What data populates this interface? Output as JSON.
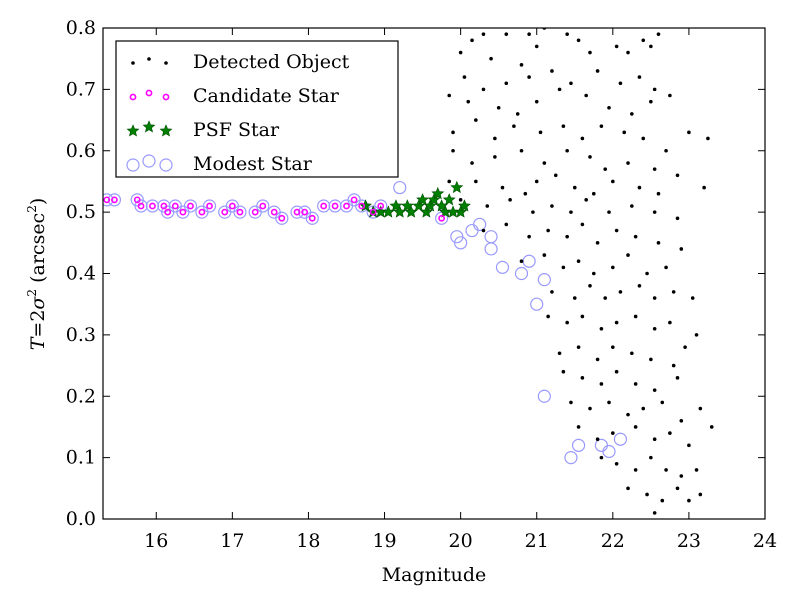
{
  "chart_data": {
    "type": "scatter",
    "title": "",
    "xlabel": "Magnitude",
    "ylabel_parts": {
      "var": "T",
      "eq": "=2",
      "sigma": "σ",
      "sup": "2",
      "unit_open": " (arcsec",
      "unit_sup": "2",
      "unit_close": ")"
    },
    "xlim": [
      15.3,
      24
    ],
    "ylim": [
      0.0,
      0.8
    ],
    "xticks": [
      16,
      17,
      18,
      19,
      20,
      21,
      22,
      23,
      24
    ],
    "xtick_labels": [
      "16",
      "17",
      "18",
      "19",
      "20",
      "21",
      "22",
      "23",
      "24"
    ],
    "yticks": [
      0.0,
      0.1,
      0.2,
      0.3,
      0.4,
      0.5,
      0.6,
      0.7,
      0.8
    ],
    "ytick_labels": [
      "0.0",
      "0.1",
      "0.2",
      "0.3",
      "0.4",
      "0.5",
      "0.6",
      "0.7",
      "0.8"
    ],
    "grid": false,
    "legend_position": "top-left",
    "series": [
      {
        "name": "Detected Object",
        "marker": "dot",
        "color": "#000000",
        "points": [
          [
            20.15,
            0.78
          ],
          [
            20.3,
            0.79
          ],
          [
            20.6,
            0.79
          ],
          [
            20.9,
            0.79
          ],
          [
            21.1,
            0.8
          ],
          [
            21.4,
            0.79
          ],
          [
            21.55,
            0.78
          ],
          [
            22.05,
            0.77
          ],
          [
            22.4,
            0.78
          ],
          [
            22.6,
            0.79
          ],
          [
            20.0,
            0.76
          ],
          [
            20.4,
            0.75
          ],
          [
            20.8,
            0.74
          ],
          [
            21.0,
            0.77
          ],
          [
            21.7,
            0.76
          ],
          [
            22.2,
            0.76
          ],
          [
            22.5,
            0.77
          ],
          [
            20.05,
            0.72
          ],
          [
            20.3,
            0.7
          ],
          [
            20.6,
            0.71
          ],
          [
            20.9,
            0.72
          ],
          [
            21.2,
            0.73
          ],
          [
            21.45,
            0.71
          ],
          [
            21.8,
            0.73
          ],
          [
            22.1,
            0.71
          ],
          [
            22.35,
            0.72
          ],
          [
            22.55,
            0.7
          ],
          [
            22.75,
            0.69
          ],
          [
            19.85,
            0.69
          ],
          [
            20.1,
            0.68
          ],
          [
            20.5,
            0.67
          ],
          [
            20.75,
            0.66
          ],
          [
            21.0,
            0.68
          ],
          [
            21.3,
            0.7
          ],
          [
            21.65,
            0.69
          ],
          [
            21.95,
            0.67
          ],
          [
            22.25,
            0.66
          ],
          [
            22.5,
            0.68
          ],
          [
            19.9,
            0.63
          ],
          [
            20.2,
            0.65
          ],
          [
            20.45,
            0.62
          ],
          [
            20.7,
            0.64
          ],
          [
            21.05,
            0.63
          ],
          [
            21.35,
            0.64
          ],
          [
            21.6,
            0.62
          ],
          [
            21.85,
            0.64
          ],
          [
            22.15,
            0.63
          ],
          [
            22.4,
            0.62
          ],
          [
            22.7,
            0.6
          ],
          [
            23.0,
            0.63
          ],
          [
            23.25,
            0.62
          ],
          [
            19.9,
            0.6
          ],
          [
            20.15,
            0.58
          ],
          [
            20.45,
            0.59
          ],
          [
            20.8,
            0.6
          ],
          [
            21.1,
            0.58
          ],
          [
            21.4,
            0.6
          ],
          [
            21.7,
            0.59
          ],
          [
            21.9,
            0.57
          ],
          [
            22.2,
            0.58
          ],
          [
            22.55,
            0.57
          ],
          [
            22.85,
            0.56
          ],
          [
            19.85,
            0.55
          ],
          [
            20.2,
            0.55
          ],
          [
            20.55,
            0.54
          ],
          [
            20.85,
            0.53
          ],
          [
            21.0,
            0.55
          ],
          [
            21.25,
            0.56
          ],
          [
            21.5,
            0.54
          ],
          [
            21.75,
            0.53
          ],
          [
            22.0,
            0.55
          ],
          [
            22.35,
            0.54
          ],
          [
            22.6,
            0.53
          ],
          [
            23.2,
            0.54
          ],
          [
            20.0,
            0.52
          ],
          [
            20.35,
            0.51
          ],
          [
            20.65,
            0.52
          ],
          [
            20.95,
            0.5
          ],
          [
            21.2,
            0.51
          ],
          [
            21.45,
            0.5
          ],
          [
            21.65,
            0.52
          ],
          [
            21.95,
            0.5
          ],
          [
            22.25,
            0.51
          ],
          [
            22.55,
            0.5
          ],
          [
            22.85,
            0.49
          ],
          [
            20.3,
            0.47
          ],
          [
            20.6,
            0.48
          ],
          [
            20.9,
            0.46
          ],
          [
            21.15,
            0.47
          ],
          [
            21.4,
            0.46
          ],
          [
            21.6,
            0.48
          ],
          [
            21.8,
            0.45
          ],
          [
            22.05,
            0.47
          ],
          [
            22.3,
            0.46
          ],
          [
            22.6,
            0.45
          ],
          [
            22.9,
            0.44
          ],
          [
            20.8,
            0.42
          ],
          [
            21.1,
            0.43
          ],
          [
            21.35,
            0.41
          ],
          [
            21.55,
            0.42
          ],
          [
            21.75,
            0.4
          ],
          [
            22.0,
            0.41
          ],
          [
            22.2,
            0.43
          ],
          [
            22.45,
            0.4
          ],
          [
            22.7,
            0.41
          ],
          [
            21.2,
            0.37
          ],
          [
            21.5,
            0.36
          ],
          [
            21.7,
            0.38
          ],
          [
            21.9,
            0.36
          ],
          [
            22.1,
            0.37
          ],
          [
            22.35,
            0.38
          ],
          [
            22.55,
            0.36
          ],
          [
            22.8,
            0.37
          ],
          [
            23.05,
            0.36
          ],
          [
            21.15,
            0.33
          ],
          [
            21.4,
            0.32
          ],
          [
            21.6,
            0.33
          ],
          [
            21.85,
            0.31
          ],
          [
            22.05,
            0.32
          ],
          [
            22.3,
            0.33
          ],
          [
            22.55,
            0.31
          ],
          [
            22.75,
            0.32
          ],
          [
            23.1,
            0.3
          ],
          [
            21.3,
            0.27
          ],
          [
            21.55,
            0.28
          ],
          [
            21.8,
            0.26
          ],
          [
            22.0,
            0.28
          ],
          [
            22.25,
            0.27
          ],
          [
            22.5,
            0.26
          ],
          [
            22.8,
            0.25
          ],
          [
            22.95,
            0.28
          ],
          [
            21.35,
            0.24
          ],
          [
            21.6,
            0.23
          ],
          [
            21.85,
            0.22
          ],
          [
            22.05,
            0.24
          ],
          [
            22.3,
            0.22
          ],
          [
            22.55,
            0.21
          ],
          [
            22.85,
            0.23
          ],
          [
            21.45,
            0.19
          ],
          [
            21.7,
            0.18
          ],
          [
            21.95,
            0.19
          ],
          [
            22.2,
            0.17
          ],
          [
            22.4,
            0.18
          ],
          [
            22.65,
            0.19
          ],
          [
            22.9,
            0.16
          ],
          [
            23.15,
            0.18
          ],
          [
            21.55,
            0.15
          ],
          [
            21.8,
            0.13
          ],
          [
            22.0,
            0.14
          ],
          [
            22.3,
            0.15
          ],
          [
            22.55,
            0.13
          ],
          [
            22.75,
            0.14
          ],
          [
            23.0,
            0.12
          ],
          [
            23.3,
            0.15
          ],
          [
            21.85,
            0.1
          ],
          [
            22.05,
            0.09
          ],
          [
            22.3,
            0.08
          ],
          [
            22.5,
            0.1
          ],
          [
            22.7,
            0.08
          ],
          [
            22.9,
            0.07
          ],
          [
            23.1,
            0.08
          ],
          [
            22.2,
            0.05
          ],
          [
            22.45,
            0.04
          ],
          [
            22.65,
            0.03
          ],
          [
            22.85,
            0.05
          ],
          [
            23.0,
            0.03
          ],
          [
            23.15,
            0.04
          ],
          [
            22.55,
            0.01
          ]
        ]
      },
      {
        "name": "Candidate Star",
        "marker": "small-ring",
        "color": "#ff00ff",
        "points": [
          [
            15.35,
            0.52
          ],
          [
            15.45,
            0.52
          ],
          [
            15.75,
            0.52
          ],
          [
            15.8,
            0.51
          ],
          [
            15.95,
            0.51
          ],
          [
            16.1,
            0.51
          ],
          [
            16.15,
            0.5
          ],
          [
            16.25,
            0.51
          ],
          [
            16.35,
            0.5
          ],
          [
            16.45,
            0.51
          ],
          [
            16.6,
            0.5
          ],
          [
            16.7,
            0.51
          ],
          [
            16.9,
            0.5
          ],
          [
            17.0,
            0.51
          ],
          [
            17.1,
            0.5
          ],
          [
            17.3,
            0.5
          ],
          [
            17.4,
            0.51
          ],
          [
            17.55,
            0.5
          ],
          [
            17.65,
            0.49
          ],
          [
            17.85,
            0.5
          ],
          [
            17.95,
            0.5
          ],
          [
            18.05,
            0.49
          ],
          [
            18.2,
            0.51
          ],
          [
            18.35,
            0.51
          ],
          [
            18.5,
            0.51
          ],
          [
            18.6,
            0.52
          ],
          [
            18.7,
            0.51
          ],
          [
            18.85,
            0.5
          ],
          [
            18.95,
            0.51
          ],
          [
            19.75,
            0.49
          ]
        ]
      },
      {
        "name": "PSF Star",
        "marker": "star",
        "color": "#008000",
        "points": [
          [
            18.75,
            0.51
          ],
          [
            18.85,
            0.5
          ],
          [
            18.95,
            0.5
          ],
          [
            19.05,
            0.5
          ],
          [
            19.15,
            0.51
          ],
          [
            19.2,
            0.5
          ],
          [
            19.3,
            0.51
          ],
          [
            19.35,
            0.5
          ],
          [
            19.45,
            0.51
          ],
          [
            19.5,
            0.52
          ],
          [
            19.55,
            0.5
          ],
          [
            19.6,
            0.51
          ],
          [
            19.65,
            0.52
          ],
          [
            19.7,
            0.53
          ],
          [
            19.75,
            0.51
          ],
          [
            19.8,
            0.5
          ],
          [
            19.85,
            0.52
          ],
          [
            19.95,
            0.54
          ],
          [
            20.0,
            0.5
          ],
          [
            20.05,
            0.51
          ],
          [
            19.9,
            0.5
          ]
        ]
      },
      {
        "name": "Modest Star",
        "marker": "ring",
        "color": "#9999ff",
        "points": [
          [
            15.35,
            0.52
          ],
          [
            15.45,
            0.52
          ],
          [
            15.75,
            0.52
          ],
          [
            15.8,
            0.51
          ],
          [
            15.95,
            0.51
          ],
          [
            16.1,
            0.51
          ],
          [
            16.15,
            0.5
          ],
          [
            16.25,
            0.51
          ],
          [
            16.35,
            0.5
          ],
          [
            16.45,
            0.51
          ],
          [
            16.6,
            0.5
          ],
          [
            16.7,
            0.51
          ],
          [
            16.9,
            0.5
          ],
          [
            17.0,
            0.51
          ],
          [
            17.1,
            0.5
          ],
          [
            17.3,
            0.5
          ],
          [
            17.4,
            0.51
          ],
          [
            17.55,
            0.5
          ],
          [
            17.65,
            0.49
          ],
          [
            17.85,
            0.5
          ],
          [
            17.95,
            0.5
          ],
          [
            18.05,
            0.49
          ],
          [
            18.2,
            0.51
          ],
          [
            18.35,
            0.51
          ],
          [
            18.5,
            0.51
          ],
          [
            18.6,
            0.52
          ],
          [
            18.7,
            0.51
          ],
          [
            18.85,
            0.5
          ],
          [
            18.95,
            0.51
          ],
          [
            19.2,
            0.54
          ],
          [
            19.75,
            0.49
          ],
          [
            19.95,
            0.46
          ],
          [
            20.0,
            0.45
          ],
          [
            20.15,
            0.47
          ],
          [
            20.25,
            0.48
          ],
          [
            20.4,
            0.44
          ],
          [
            20.4,
            0.46
          ],
          [
            20.55,
            0.41
          ],
          [
            20.8,
            0.4
          ],
          [
            20.9,
            0.42
          ],
          [
            21.0,
            0.35
          ],
          [
            21.1,
            0.39
          ],
          [
            21.1,
            0.2
          ],
          [
            21.45,
            0.1
          ],
          [
            21.55,
            0.12
          ],
          [
            21.85,
            0.12
          ],
          [
            21.95,
            0.11
          ],
          [
            22.1,
            0.13
          ]
        ]
      }
    ]
  }
}
